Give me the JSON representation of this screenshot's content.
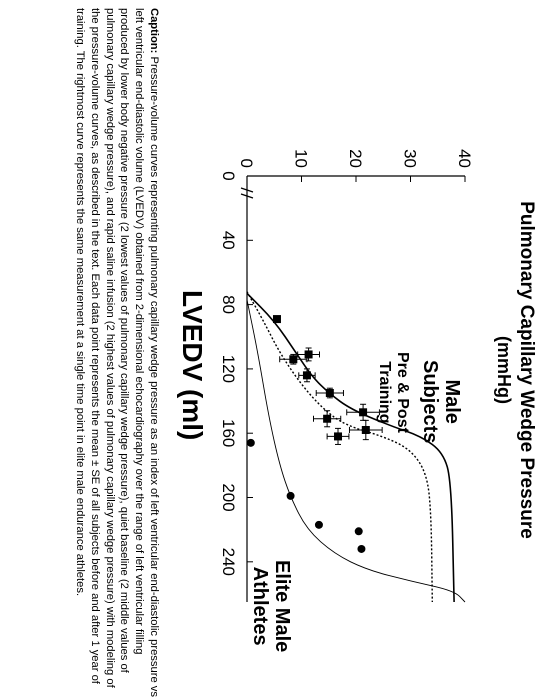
{
  "chart_data": {
    "type": "scatter",
    "title": "",
    "ylabel": "Pulmonary Capillary Wedge Pressure",
    "ylabel_unit": "(mmHg)",
    "xlabel": "LVEDV (ml)",
    "xlim": [
      0,
      265
    ],
    "ylim": [
      0,
      40
    ],
    "xticks": [
      0,
      40,
      80,
      120,
      160,
      200,
      240
    ],
    "yticks": [
      0,
      10,
      20,
      30,
      40
    ],
    "annotations": [
      {
        "text_lines": [
          "Male",
          "Subjects"
        ]
      },
      {
        "text_lines": [
          "Pre & Post",
          "Training"
        ]
      },
      {
        "text_lines": [
          "Elite Male",
          "Athletes"
        ]
      }
    ],
    "series": [
      {
        "marker": "square",
        "points": [
          {
            "x": 89,
            "y": 5.5,
            "ex": 0,
            "ey": 0
          },
          {
            "x": 114,
            "y": 8.5,
            "ex": 3,
            "ey": 2.5
          },
          {
            "x": 111,
            "y": 11.3,
            "ex": 4,
            "ey": 2
          },
          {
            "x": 124,
            "y": 11.0,
            "ex": 4,
            "ey": 1.5
          },
          {
            "x": 135,
            "y": 15.2,
            "ex": 3,
            "ey": 2.5
          },
          {
            "x": 151,
            "y": 14.7,
            "ex": 5,
            "ey": 2.5
          },
          {
            "x": 147,
            "y": 21.3,
            "ex": 5,
            "ey": 3
          },
          {
            "x": 158,
            "y": 21.8,
            "ex": 6,
            "ey": 3
          },
          {
            "x": 162,
            "y": 16.7,
            "ex": 5,
            "ey": 2
          }
        ]
      },
      {
        "marker": "circle",
        "points": [
          {
            "x": 166,
            "y": 0.7,
            "ex": 0,
            "ey": 0
          },
          {
            "x": 199,
            "y": 8.0,
            "ex": 0,
            "ey": 0
          },
          {
            "x": 217,
            "y": 13.2,
            "ex": 0,
            "ey": 0
          },
          {
            "x": 221,
            "y": 20.5,
            "ex": 0,
            "ey": 0
          },
          {
            "x": 232,
            "y": 21.0,
            "ex": 0,
            "ey": 0
          }
        ]
      }
    ],
    "curves": [
      {
        "style": "solid",
        "points": [
          [
            73,
            0
          ],
          [
            90,
            5
          ],
          [
            110,
            9
          ],
          [
            125,
            12
          ],
          [
            135,
            15
          ],
          [
            145,
            19
          ],
          [
            155,
            26
          ],
          [
            162,
            32
          ],
          [
            172,
            36
          ],
          [
            190,
            37.5
          ],
          [
            265,
            38
          ]
        ]
      },
      {
        "style": "dotted",
        "points": [
          [
            72,
            0
          ],
          [
            90,
            3
          ],
          [
            110,
            6
          ],
          [
            130,
            10
          ],
          [
            145,
            14
          ],
          [
            155,
            18
          ],
          [
            162,
            25
          ],
          [
            170,
            30
          ],
          [
            185,
            33
          ],
          [
            210,
            33.8
          ],
          [
            265,
            34
          ]
        ]
      },
      {
        "style": "thin",
        "points": [
          [
            77,
            0
          ],
          [
            110,
            2
          ],
          [
            150,
            4
          ],
          [
            180,
            6
          ],
          [
            200,
            8
          ],
          [
            220,
            11
          ],
          [
            235,
            16
          ],
          [
            245,
            22
          ],
          [
            252,
            30
          ],
          [
            258,
            38
          ],
          [
            265,
            40
          ]
        ]
      }
    ]
  },
  "caption": {
    "label": "Caption:",
    "text": " Pressure-volume curves representing pulmonary capillary wedge pressure as an index of left ventricular end-diastolic pressure vs left ventricular end-diastolic volume (LVEDV) obtained from 2-dimensional echocardiography over the range of left ventricular filling produced by lower body negative pressure (2 lowest values of pulmonary capillary wedge pressure), quiet baseline (2 middle values of pulmonary capillary wedge pressure), and rapid saline infusion (2 highest values of pulmonary capillary wedge pressure) with modeling of the pressure-volume curves, as described in the text. Each data point represents the mean ± SE of all subjects before and after 1 year of training. The rightmost curve represents the same measurement at a single time point in elite male endurance athletes."
  }
}
